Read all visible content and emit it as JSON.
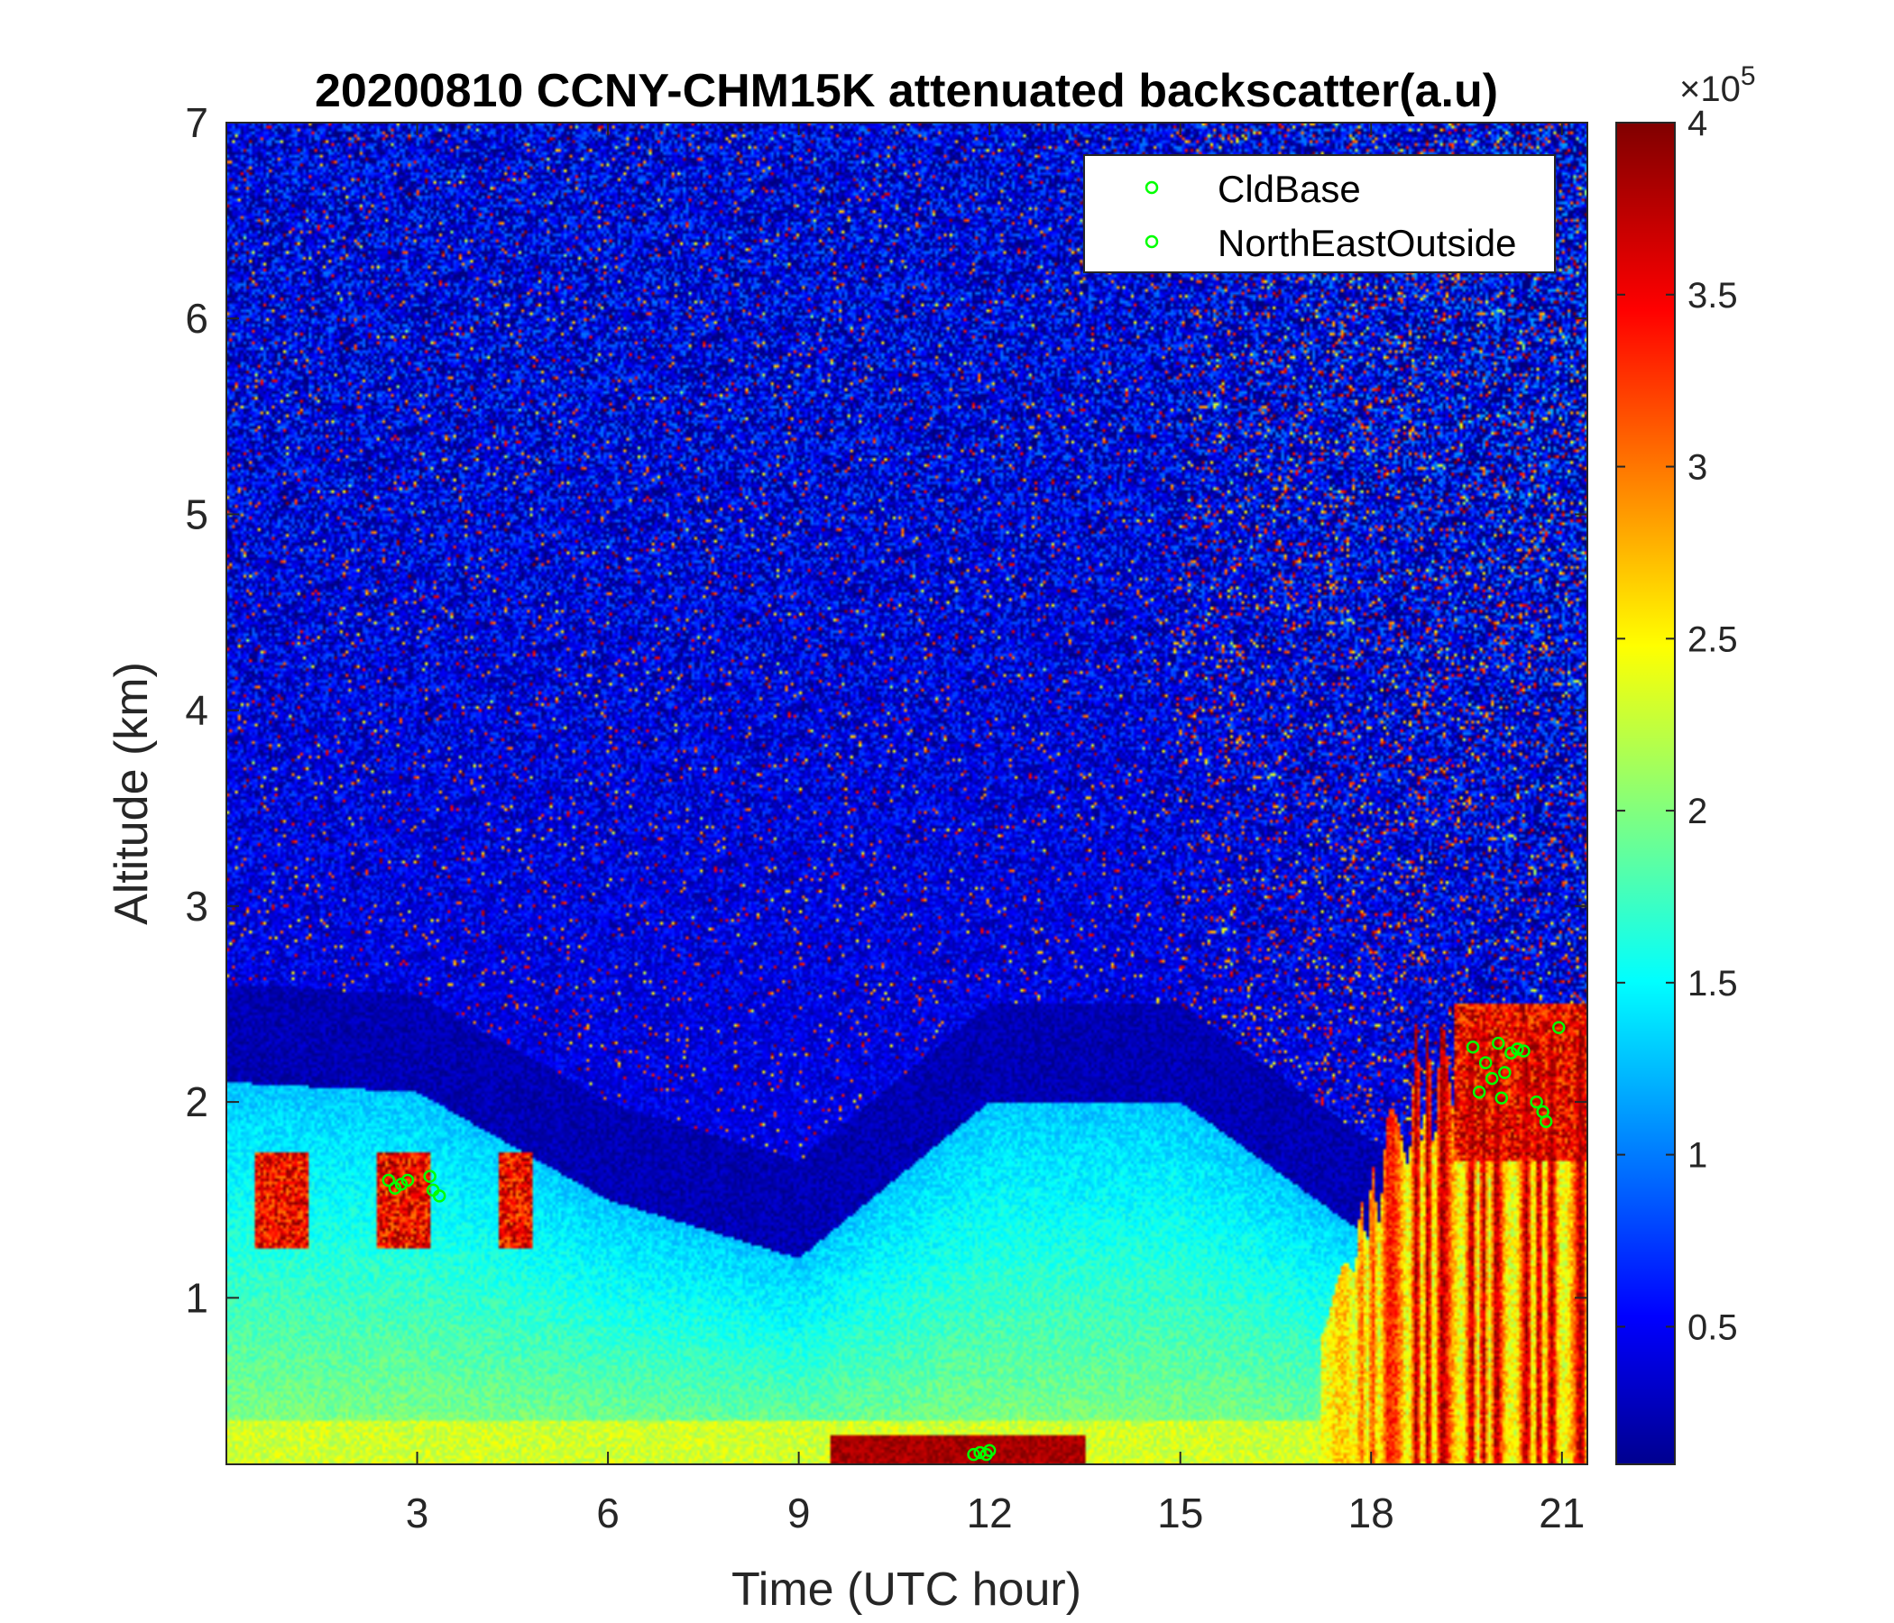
{
  "chart_data": {
    "type": "heatmap",
    "title": "20200810 CCNY-CHM15K attenuated backscatter(a.u)",
    "xlabel": "Time (UTC hour)",
    "ylabel": "Altitude (km)",
    "xlim": [
      0,
      21.4
    ],
    "ylim": [
      0.15,
      7
    ],
    "xticks": [
      3,
      6,
      9,
      12,
      15,
      18,
      21
    ],
    "yticks": [
      1,
      2,
      3,
      4,
      5,
      6,
      7
    ],
    "colormap": "jet",
    "colorbar": {
      "range": [
        0.1,
        4
      ],
      "ticks": [
        0.5,
        1,
        1.5,
        2,
        2.5,
        3,
        3.5,
        4
      ],
      "exponent_label": "×10",
      "exponent": "5"
    },
    "legend": {
      "position": "top-right",
      "entries": [
        "CldBase",
        "NorthEastOutside"
      ],
      "marker_color": "#00ff00"
    },
    "cloud_base_points": [
      {
        "x": 2.55,
        "y": 1.6
      },
      {
        "x": 2.65,
        "y": 1.56
      },
      {
        "x": 2.75,
        "y": 1.58
      },
      {
        "x": 2.85,
        "y": 1.6
      },
      {
        "x": 3.2,
        "y": 1.62
      },
      {
        "x": 3.25,
        "y": 1.55
      },
      {
        "x": 3.35,
        "y": 1.52
      },
      {
        "x": 11.75,
        "y": 0.2
      },
      {
        "x": 11.85,
        "y": 0.21
      },
      {
        "x": 11.95,
        "y": 0.2
      },
      {
        "x": 12.0,
        "y": 0.22
      },
      {
        "x": 19.6,
        "y": 2.28
      },
      {
        "x": 19.7,
        "y": 2.05
      },
      {
        "x": 19.8,
        "y": 2.2
      },
      {
        "x": 19.9,
        "y": 2.12
      },
      {
        "x": 20.0,
        "y": 2.3
      },
      {
        "x": 20.05,
        "y": 2.02
      },
      {
        "x": 20.1,
        "y": 2.15
      },
      {
        "x": 20.2,
        "y": 2.25
      },
      {
        "x": 20.3,
        "y": 2.27
      },
      {
        "x": 20.4,
        "y": 2.26
      },
      {
        "x": 20.6,
        "y": 2.0
      },
      {
        "x": 20.7,
        "y": 1.95
      },
      {
        "x": 20.75,
        "y": 1.9
      },
      {
        "x": 20.95,
        "y": 2.38
      }
    ],
    "features": [
      {
        "name": "boundary layer top",
        "x": [
          0,
          3,
          6,
          9,
          12,
          15,
          18,
          21.4
        ],
        "y": [
          2.1,
          2.05,
          1.5,
          1.2,
          2.0,
          2.0,
          1.3,
          1.2
        ]
      },
      {
        "name": "cloud layer",
        "x": [
          0.4,
          4.8
        ],
        "y": [
          1.2,
          1.8
        ]
      },
      {
        "name": "surface layer",
        "x": [
          9.5,
          13.5
        ],
        "y": [
          0.15,
          0.38
        ]
      },
      {
        "name": "high backscatter region",
        "x": [
          17.2,
          21.4
        ],
        "y": [
          0.15,
          2.6
        ]
      }
    ]
  }
}
